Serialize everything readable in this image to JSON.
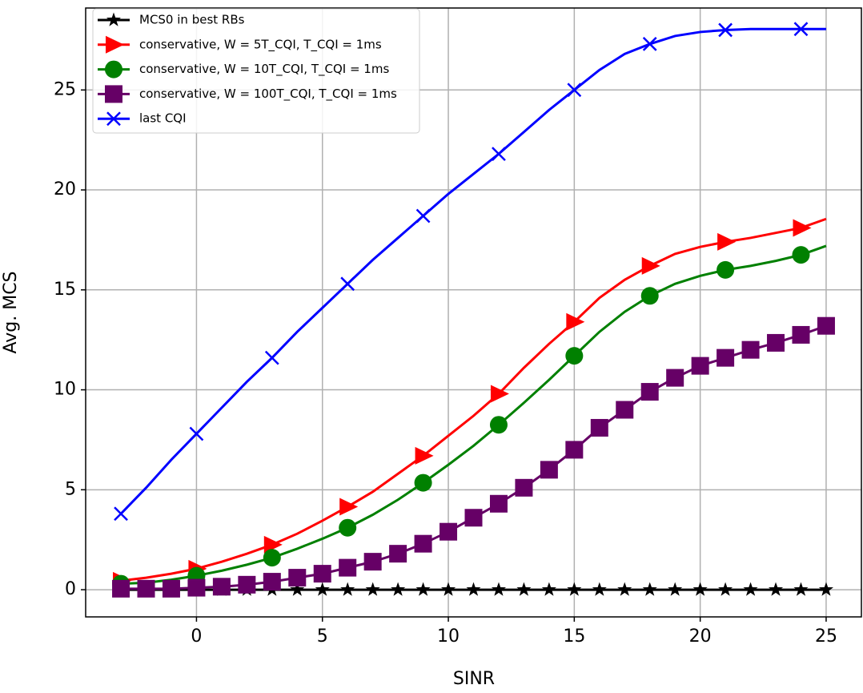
{
  "chart_data": {
    "type": "line",
    "xlabel": "SINR",
    "ylabel": "Avg. MCS",
    "x": [
      -3,
      -2,
      -1,
      0,
      1,
      2,
      3,
      4,
      5,
      6,
      7,
      8,
      9,
      10,
      11,
      12,
      13,
      14,
      15,
      16,
      17,
      18,
      19,
      20,
      21,
      22,
      23,
      24,
      25
    ],
    "series": [
      {
        "name": "MCS0 in best RBs",
        "color": "#000000",
        "marker": "star",
        "markevery": 1,
        "values": [
          0,
          0,
          0,
          0,
          0,
          0,
          0,
          0,
          0,
          0,
          0,
          0,
          0,
          0,
          0,
          0,
          0,
          0,
          0,
          0,
          0,
          0,
          0,
          0,
          0,
          0,
          0,
          0,
          0
        ]
      },
      {
        "name": "conservative, W = 5T_CQI, T_CQI = 1ms",
        "color": "#ff0000",
        "marker": "triangle-right",
        "markevery": 3,
        "values": [
          0.45,
          0.6,
          0.8,
          1.05,
          1.4,
          1.8,
          2.25,
          2.8,
          3.45,
          4.15,
          4.9,
          5.8,
          6.7,
          7.7,
          8.7,
          9.8,
          11.1,
          12.3,
          13.4,
          14.6,
          15.5,
          16.2,
          16.8,
          17.15,
          17.4,
          17.6,
          17.85,
          18.1,
          18.55
        ]
      },
      {
        "name": "conservative, W = 10T_CQI, T_CQI = 1ms",
        "color": "#008000",
        "marker": "circle",
        "markevery": 3,
        "values": [
          0.3,
          0.35,
          0.5,
          0.7,
          0.95,
          1.25,
          1.6,
          2.05,
          2.55,
          3.1,
          3.75,
          4.5,
          5.35,
          6.25,
          7.2,
          8.25,
          9.35,
          10.5,
          11.7,
          12.9,
          13.9,
          14.7,
          15.3,
          15.7,
          16.0,
          16.2,
          16.45,
          16.75,
          17.2
        ]
      },
      {
        "name": "conservative, W = 100T_CQI, T_CQI = 1ms",
        "color": "#660066",
        "marker": "square",
        "markevery": 1,
        "values": [
          0.05,
          0.05,
          0.05,
          0.1,
          0.15,
          0.25,
          0.4,
          0.6,
          0.8,
          1.1,
          1.4,
          1.8,
          2.3,
          2.9,
          3.6,
          4.3,
          5.1,
          6.0,
          7.0,
          8.1,
          9.0,
          9.9,
          10.6,
          11.2,
          11.6,
          12.0,
          12.35,
          12.75,
          13.2
        ]
      },
      {
        "name": "last CQI",
        "color": "#0000ff",
        "marker": "x",
        "markevery": 3,
        "values": [
          3.8,
          5.1,
          6.5,
          7.8,
          9.1,
          10.4,
          11.6,
          12.9,
          14.1,
          15.3,
          16.5,
          17.6,
          18.7,
          19.8,
          20.8,
          21.8,
          22.9,
          24.0,
          25.0,
          26.0,
          26.8,
          27.3,
          27.7,
          27.9,
          28.0,
          28.05,
          28.05,
          28.05,
          28.05
        ]
      }
    ],
    "xlim": [
      -4.4,
      26.4
    ],
    "ylim": [
      -1.36,
      29.1
    ],
    "xticks": [
      0,
      5,
      10,
      15,
      20,
      25
    ],
    "yticks": [
      0,
      5,
      10,
      15,
      20,
      25
    ],
    "grid": true,
    "legend": "upper left"
  }
}
